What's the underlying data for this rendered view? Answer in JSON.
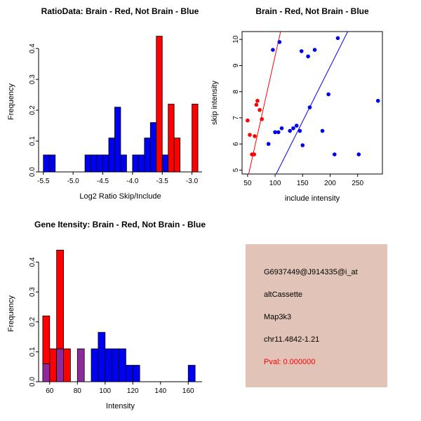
{
  "palette": {
    "red": "#FF0000",
    "blue": "#0000F0",
    "purple": "#8F2A9C",
    "axis": "#000000"
  },
  "chart_data": [
    {
      "id": "ratio-hist",
      "type": "bar",
      "title": "RatioData: Brain - Red, Not Brain - Blue",
      "xlabel": "Log2 Ratio Skip/Include",
      "ylabel": "Frequency",
      "xlim": [
        -5.58,
        -2.83
      ],
      "ylim": [
        0,
        0.455
      ],
      "xticks": [
        -5.5,
        -5.0,
        -4.5,
        -4.0,
        -3.5,
        -3.0
      ],
      "xtick_labels": [
        "-5.5",
        "-5.0",
        "-4.5",
        "-4.0",
        "-3.5",
        "-3.0"
      ],
      "yticks": [
        0,
        0.1,
        0.2,
        0.3,
        0.4
      ],
      "ytick_labels": [
        "0.0",
        "0.1",
        "0.2",
        "0.3",
        "0.4"
      ],
      "bin_width": 0.1,
      "legend_note": "Brain histogram bars red, Not Brain bars blue",
      "bars": [
        {
          "x": -5.5,
          "segments": [
            {
              "color": "blue",
              "h": 0.055
            }
          ]
        },
        {
          "x": -5.4,
          "segments": [
            {
              "color": "blue",
              "h": 0.055
            }
          ]
        },
        {
          "x": -4.8,
          "segments": [
            {
              "color": "blue",
              "h": 0.055
            }
          ]
        },
        {
          "x": -4.7,
          "segments": [
            {
              "color": "blue",
              "h": 0.055
            }
          ]
        },
        {
          "x": -4.6,
          "segments": [
            {
              "color": "blue",
              "h": 0.055
            }
          ]
        },
        {
          "x": -4.5,
          "segments": [
            {
              "color": "blue",
              "h": 0.055
            }
          ]
        },
        {
          "x": -4.4,
          "segments": [
            {
              "color": "blue",
              "h": 0.11
            }
          ]
        },
        {
          "x": -4.3,
          "segments": [
            {
              "color": "blue",
              "h": 0.21
            }
          ]
        },
        {
          "x": -4.2,
          "segments": [
            {
              "color": "blue",
              "h": 0.055
            }
          ]
        },
        {
          "x": -4.0,
          "segments": [
            {
              "color": "blue",
              "h": 0.055
            }
          ]
        },
        {
          "x": -3.9,
          "segments": [
            {
              "color": "blue",
              "h": 0.055
            }
          ]
        },
        {
          "x": -3.8,
          "segments": [
            {
              "color": "blue",
              "h": 0.11
            }
          ]
        },
        {
          "x": -3.7,
          "segments": [
            {
              "color": "blue",
              "h": 0.16
            }
          ]
        },
        {
          "x": -3.6,
          "segments": [
            {
              "color": "red",
              "h": 0.44
            }
          ]
        },
        {
          "x": -3.5,
          "segments": [
            {
              "color": "blue",
              "h": 0.055
            }
          ]
        },
        {
          "x": -3.4,
          "segments": [
            {
              "color": "red",
              "h": 0.22
            }
          ]
        },
        {
          "x": -3.3,
          "segments": [
            {
              "color": "red",
              "h": 0.11
            }
          ]
        },
        {
          "x": -3.0,
          "segments": [
            {
              "color": "red",
              "h": 0.22
            }
          ]
        }
      ]
    },
    {
      "id": "intensity-scatter",
      "type": "scatter",
      "title": "Brain - Red, Not Brain - Blue",
      "xlabel": "include intensity",
      "ylabel": "skip intensity",
      "xlim": [
        40,
        295
      ],
      "ylim": [
        4.85,
        10.3
      ],
      "xticks": [
        50,
        100,
        150,
        200,
        250
      ],
      "xtick_labels": [
        "50",
        "100",
        "150",
        "200",
        "250"
      ],
      "yticks": [
        5,
        6,
        7,
        8,
        9,
        10
      ],
      "ytick_labels": [
        "5",
        "6",
        "7",
        "8",
        "9",
        "10"
      ],
      "box": true,
      "series": [
        {
          "name": "Brain",
          "color": "red",
          "points": [
            [
              50,
              6.9
            ],
            [
              54,
              6.35
            ],
            [
              58,
              5.6
            ],
            [
              62,
              5.6
            ],
            [
              63,
              6.3
            ],
            [
              66,
              7.5
            ],
            [
              68,
              7.65
            ],
            [
              72,
              7.3
            ],
            [
              76,
              6.95
            ]
          ]
        },
        {
          "name": "Not Brain",
          "color": "blue",
          "points": [
            [
              96,
              9.6
            ],
            [
              108,
              9.9
            ],
            [
              148,
              9.55
            ],
            [
              160,
              9.35
            ],
            [
              172,
              9.6
            ],
            [
              214,
              10.05
            ],
            [
              88,
              6.0
            ],
            [
              100,
              6.45
            ],
            [
              106,
              6.45
            ],
            [
              112,
              6.6
            ],
            [
              127,
              6.5
            ],
            [
              133,
              6.6
            ],
            [
              139,
              6.7
            ],
            [
              145,
              6.5
            ],
            [
              150,
              5.95
            ],
            [
              163,
              7.4
            ],
            [
              186,
              6.5
            ],
            [
              197,
              7.9
            ],
            [
              208,
              5.6
            ],
            [
              252,
              5.6
            ],
            [
              287,
              7.65
            ]
          ]
        }
      ],
      "lines": [
        {
          "color": "red",
          "from": [
            52,
            4.85
          ],
          "to": [
            110,
            10.3
          ]
        },
        {
          "color": "blue",
          "from": [
            102,
            4.85
          ],
          "to": [
            232,
            10.3
          ]
        }
      ]
    },
    {
      "id": "gene-hist",
      "type": "bar",
      "title": "Gene Itensity: Brain - Red, Not Brain - Blue",
      "xlabel": "Intensity",
      "ylabel": "Frequency",
      "xlim": [
        52,
        170
      ],
      "ylim": [
        0,
        0.455
      ],
      "xticks": [
        60,
        80,
        100,
        120,
        140,
        160
      ],
      "xtick_labels": [
        "60",
        "80",
        "100",
        "120",
        "140",
        "160"
      ],
      "yticks": [
        0,
        0.1,
        0.2,
        0.3,
        0.4
      ],
      "ytick_labels": [
        "0.0",
        "0.1",
        "0.2",
        "0.3",
        "0.4"
      ],
      "bin_width": 5,
      "legend_note": "Overlap of red and blue histograms shown purple",
      "bars": [
        {
          "x": 55,
          "segments": [
            {
              "color": "purple",
              "h": 0.06
            },
            {
              "color": "red",
              "h": 0.16
            }
          ]
        },
        {
          "x": 60,
          "segments": [
            {
              "color": "red",
              "h": 0.11
            }
          ]
        },
        {
          "x": 65,
          "segments": [
            {
              "color": "purple",
              "h": 0.11
            },
            {
              "color": "red",
              "h": 0.33
            }
          ]
        },
        {
          "x": 70,
          "segments": [
            {
              "color": "red",
              "h": 0.11
            }
          ]
        },
        {
          "x": 80,
          "segments": [
            {
              "color": "purple",
              "h": 0.11
            }
          ]
        },
        {
          "x": 90,
          "segments": [
            {
              "color": "blue",
              "h": 0.11
            }
          ]
        },
        {
          "x": 95,
          "segments": [
            {
              "color": "blue",
              "h": 0.165
            }
          ]
        },
        {
          "x": 100,
          "segments": [
            {
              "color": "blue",
              "h": 0.11
            }
          ]
        },
        {
          "x": 105,
          "segments": [
            {
              "color": "blue",
              "h": 0.11
            }
          ]
        },
        {
          "x": 110,
          "segments": [
            {
              "color": "blue",
              "h": 0.11
            }
          ]
        },
        {
          "x": 115,
          "segments": [
            {
              "color": "blue",
              "h": 0.055
            }
          ]
        },
        {
          "x": 120,
          "segments": [
            {
              "color": "blue",
              "h": 0.055
            }
          ]
        },
        {
          "x": 160,
          "segments": [
            {
              "color": "blue",
              "h": 0.055
            }
          ]
        }
      ]
    }
  ],
  "info_box": {
    "background": "#E2C3B8",
    "lines": [
      {
        "text": "G6937449@J914335@i_at",
        "color": "#000000"
      },
      {
        "text": "altCassette",
        "color": "#000000"
      },
      {
        "text": "Map3k3",
        "color": "#000000"
      },
      {
        "text": "chr11.4842-1.21",
        "color": "#000000"
      },
      {
        "text": "Pval: 0.000000",
        "color": "#FF0000"
      }
    ]
  }
}
